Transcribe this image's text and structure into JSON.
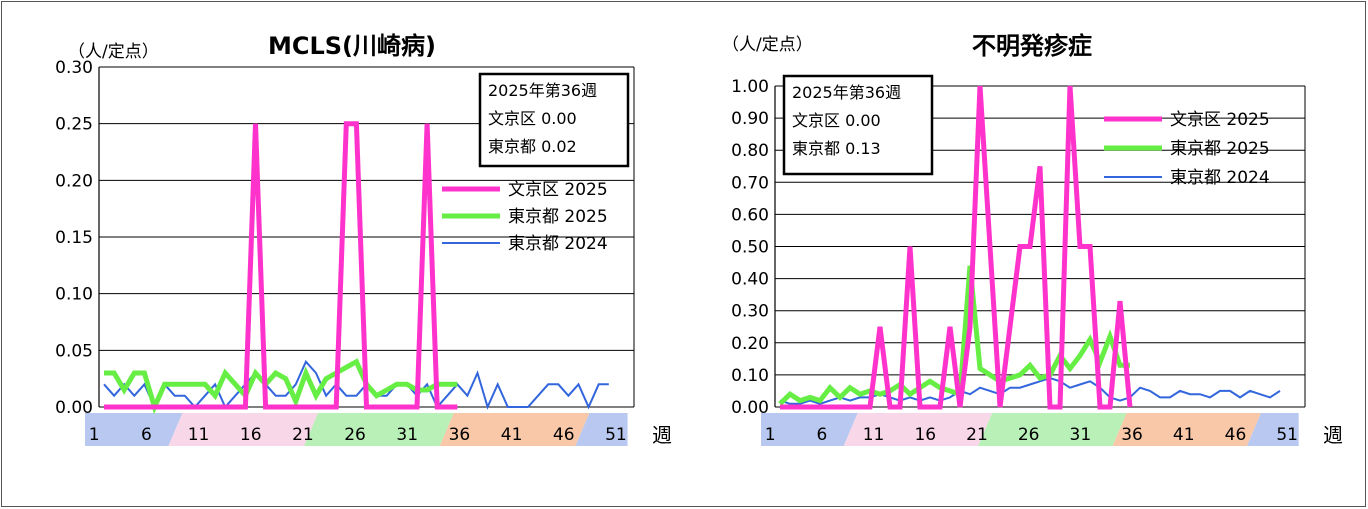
{
  "chart_data": [
    {
      "type": "line",
      "title": "MCLS(川崎病)",
      "ylabel": "（人/定点）",
      "xlabel": "週",
      "ylim": [
        0,
        0.3
      ],
      "yticks": [
        "0.00",
        "0.05",
        "0.10",
        "0.15",
        "0.20",
        "0.25",
        "0.30"
      ],
      "xticks": [
        "1",
        "6",
        "11",
        "16",
        "21",
        "26",
        "31",
        "36",
        "41",
        "46",
        "51"
      ],
      "grid": true,
      "legend_position": "right",
      "infobox": {
        "title": "2025年第36週",
        "rows": [
          "文京区  0.00",
          "東京都  0.02"
        ]
      },
      "series": [
        {
          "name": "文京区 2025",
          "color": "#ff33cc",
          "values": [
            0,
            0,
            0,
            0,
            0,
            0,
            0,
            0,
            0,
            0,
            0,
            0,
            0,
            0,
            0,
            0.25,
            0,
            0,
            0,
            0,
            0,
            0,
            0,
            0,
            0.25,
            0.25,
            0,
            0,
            0,
            0,
            0,
            0,
            0.25,
            0,
            0,
            0
          ]
        },
        {
          "name": "東京都 2025",
          "color": "#66ee44",
          "values": [
            0.03,
            0.03,
            0.015,
            0.03,
            0.03,
            0,
            0.02,
            0.02,
            0.02,
            0.02,
            0.02,
            0.01,
            0.03,
            0.02,
            0.01,
            0.03,
            0.02,
            0.03,
            0.025,
            0.005,
            0.03,
            0.01,
            0.025,
            0.03,
            0.035,
            0.04,
            0.02,
            0.01,
            0.015,
            0.02,
            0.02,
            0.015,
            0.015,
            0.02,
            0.02,
            0.02
          ]
        },
        {
          "name": "東京都 2024",
          "color": "#3366dd",
          "values": [
            0.02,
            0.01,
            0.02,
            0.01,
            0.02,
            0,
            0.02,
            0.01,
            0.01,
            0,
            0.01,
            0.02,
            0,
            0.01,
            0.02,
            0.03,
            0.02,
            0.01,
            0.01,
            0.02,
            0.04,
            0.03,
            0.01,
            0.02,
            0.01,
            0.01,
            0.02,
            0.01,
            0.01,
            0.02,
            0.02,
            0.01,
            0.02,
            0,
            0.01,
            0.02,
            0.01,
            0.03,
            0,
            0.02,
            0,
            0,
            0,
            0.01,
            0.02,
            0.02,
            0.01,
            0.02,
            0,
            0.02,
            0.02
          ]
        }
      ]
    },
    {
      "type": "line",
      "title": "不明発疹症",
      "ylabel": "（人/定点）",
      "xlabel": "週",
      "ylim": [
        0,
        1.0
      ],
      "yticks": [
        "0.00",
        "0.10",
        "0.20",
        "0.30",
        "0.40",
        "0.50",
        "0.60",
        "0.70",
        "0.80",
        "0.90",
        "1.00"
      ],
      "xticks": [
        "1",
        "6",
        "11",
        "16",
        "21",
        "26",
        "31",
        "36",
        "41",
        "46",
        "51"
      ],
      "grid": true,
      "legend_position": "top-right",
      "infobox": {
        "title": "2025年第36週",
        "rows": [
          "文京区  0.00",
          "東京都  0.13"
        ]
      },
      "series": [
        {
          "name": "文京区 2025",
          "color": "#ff33cc",
          "values": [
            0,
            0,
            0,
            0,
            0,
            0,
            0,
            0,
            0,
            0,
            0.25,
            0,
            0,
            0.5,
            0,
            0,
            0,
            0.25,
            0,
            0.25,
            1.0,
            0.5,
            0,
            0.25,
            0.5,
            0.5,
            0.75,
            0,
            0,
            1.0,
            0.5,
            0.5,
            0,
            0,
            0.33,
            0
          ]
        },
        {
          "name": "東京都 2025",
          "color": "#66ee44",
          "values": [
            0.01,
            0.04,
            0.02,
            0.03,
            0.02,
            0.06,
            0.03,
            0.06,
            0.04,
            0.05,
            0.04,
            0.05,
            0.07,
            0.04,
            0.06,
            0.08,
            0.06,
            0.05,
            0.04,
            0.44,
            0.12,
            0.1,
            0.08,
            0.09,
            0.1,
            0.13,
            0.09,
            0.1,
            0.16,
            0.12,
            0.16,
            0.21,
            0.14,
            0.22,
            0.13,
            0.13
          ]
        },
        {
          "name": "東京都 2024",
          "color": "#3366dd",
          "values": [
            0.02,
            0.01,
            0.01,
            0.02,
            0.01,
            0.02,
            0.03,
            0.02,
            0.03,
            0.03,
            0.04,
            0.03,
            0.02,
            0.03,
            0.02,
            0.03,
            0.02,
            0.03,
            0.05,
            0.04,
            0.06,
            0.05,
            0.04,
            0.06,
            0.06,
            0.07,
            0.08,
            0.09,
            0.08,
            0.06,
            0.07,
            0.08,
            0.06,
            0.03,
            0.02,
            0.03,
            0.06,
            0.05,
            0.03,
            0.03,
            0.05,
            0.04,
            0.04,
            0.03,
            0.05,
            0.05,
            0.03,
            0.05,
            0.04,
            0.03,
            0.05
          ]
        }
      ]
    }
  ]
}
